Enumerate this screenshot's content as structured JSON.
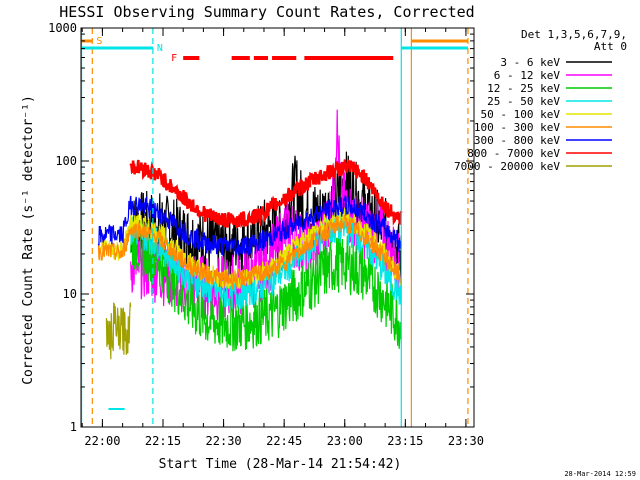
{
  "chart_data": {
    "type": "line",
    "title": "HESSI Observing Summary Count Rates, Corrected",
    "xlabel": "Start Time (28-Mar-14 21:54:42)",
    "ylabel": "Corrected Count Rate (s⁻¹ detector⁻¹)",
    "y_scale": "log",
    "ylim": [
      1,
      1000
    ],
    "xlim": [
      "21:54:42",
      "23:32:00"
    ],
    "x_ticks": [
      "22:00",
      "22:15",
      "22:30",
      "22:45",
      "23:00",
      "23:15",
      "23:30"
    ],
    "y_ticks": [
      "1",
      "10",
      "100",
      "1000"
    ],
    "legend": {
      "position": "top-right",
      "header": [
        "Det 1,3,5,6,7,9,",
        "Att 0"
      ]
    },
    "series": [
      {
        "name": "3 - 6 keV",
        "color": "#000000",
        "x": [
          "22:07",
          "22:10",
          "22:14",
          "22:18",
          "22:22",
          "22:26",
          "22:30",
          "22:34",
          "22:38",
          "22:40",
          "22:42",
          "22:44",
          "22:46",
          "22:48",
          "22:50",
          "22:54",
          "22:58",
          "23:00",
          "23:02",
          "23:05",
          "23:08",
          "23:11",
          "23:13",
          "23:14"
        ],
        "values": [
          32,
          34,
          34,
          30,
          26,
          24,
          23,
          24,
          26,
          30,
          32,
          29,
          48,
          65,
          42,
          40,
          50,
          70,
          60,
          45,
          35,
          28,
          22,
          17
        ]
      },
      {
        "name": "6 - 12 keV",
        "color": "#ff00ff",
        "x": [
          "22:07",
          "22:10",
          "22:14",
          "22:18",
          "22:22",
          "22:26",
          "22:30",
          "22:34",
          "22:38",
          "22:42",
          "22:46",
          "22:50",
          "22:54",
          "22:57",
          "22:58",
          "22:59",
          "23:00",
          "23:03",
          "23:06",
          "23:09",
          "23:12",
          "23:14"
        ],
        "values": [
          17,
          16,
          15,
          13,
          12,
          11,
          11,
          12,
          14,
          19,
          32,
          22,
          26,
          45,
          185,
          60,
          48,
          32,
          30,
          28,
          20,
          15
        ]
      },
      {
        "name": "12 - 25 keV",
        "color": "#00cc00",
        "x": [
          "22:07",
          "22:10",
          "22:14",
          "22:18",
          "22:22",
          "22:26",
          "22:30",
          "22:34",
          "22:38",
          "22:42",
          "22:46",
          "22:50",
          "22:54",
          "22:58",
          "23:00",
          "23:02",
          "23:05",
          "23:08",
          "23:11",
          "23:14"
        ],
        "values": [
          25,
          22,
          18,
          12,
          8,
          6.5,
          6,
          6,
          6.5,
          7,
          9,
          11,
          14,
          17,
          17,
          16,
          14,
          11,
          8,
          6
        ]
      },
      {
        "name": "25 - 50 keV",
        "color": "#00e5e5",
        "x": [
          "22:07",
          "22:10",
          "22:14",
          "22:18",
          "22:22",
          "22:26",
          "22:30",
          "22:34",
          "22:38",
          "22:42",
          "22:46",
          "22:50",
          "22:54",
          "22:58",
          "23:00",
          "23:02",
          "23:05",
          "23:08",
          "23:11",
          "23:14"
        ],
        "values": [
          30,
          28,
          24,
          17,
          13,
          11,
          10,
          10,
          11,
          13,
          16,
          21,
          27,
          31,
          31,
          29,
          24,
          18,
          13,
          10
        ]
      },
      {
        "name": "50 - 100 keV",
        "color": "#e5e500",
        "x": [
          "21:59",
          "22:02",
          "22:05",
          "22:07",
          "22:10",
          "22:14",
          "22:18",
          "22:22",
          "22:26",
          "22:30",
          "22:34",
          "22:38",
          "22:42",
          "22:46",
          "22:50",
          "22:54",
          "22:58",
          "23:00",
          "23:02",
          "23:05",
          "23:08",
          "23:11",
          "23:14"
        ],
        "values": [
          22,
          22,
          21,
          34,
          33,
          29,
          22,
          17,
          14,
          13,
          13,
          14,
          16,
          20,
          26,
          32,
          38,
          38,
          36,
          30,
          24,
          18,
          13
        ]
      },
      {
        "name": "100 - 300 keV",
        "color": "#ff8c00",
        "x": [
          "21:59",
          "22:02",
          "22:05",
          "22:07",
          "22:10",
          "22:14",
          "22:18",
          "22:22",
          "22:26",
          "22:30",
          "22:34",
          "22:38",
          "22:42",
          "22:46",
          "22:50",
          "22:54",
          "22:58",
          "23:00",
          "23:02",
          "23:05",
          "23:08",
          "23:11",
          "23:14"
        ],
        "values": [
          21,
          21,
          20,
          31,
          30,
          26,
          20,
          16,
          14,
          13,
          13,
          14,
          15,
          18,
          23,
          28,
          33,
          34,
          32,
          27,
          22,
          17,
          13
        ]
      },
      {
        "name": "300 - 800 keV",
        "color": "#0000ff",
        "x": [
          "21:59",
          "22:02",
          "22:05",
          "22:07",
          "22:10",
          "22:14",
          "22:18",
          "22:22",
          "22:26",
          "22:30",
          "22:34",
          "22:38",
          "22:42",
          "22:46",
          "22:50",
          "22:54",
          "22:58",
          "23:00",
          "23:02",
          "23:05",
          "23:08",
          "23:11",
          "23:14"
        ],
        "values": [
          27,
          28,
          28,
          47,
          46,
          41,
          33,
          27,
          24,
          23,
          23,
          24,
          27,
          31,
          36,
          41,
          45,
          46,
          45,
          40,
          34,
          29,
          24
        ]
      },
      {
        "name": "800 - 7000 keV",
        "color": "#ff0000",
        "x": [
          "22:07",
          "22:10",
          "22:14",
          "22:18",
          "22:22",
          "22:26",
          "22:30",
          "22:34",
          "22:38",
          "22:42",
          "22:46",
          "22:50",
          "22:54",
          "22:58",
          "23:00",
          "23:02",
          "23:05",
          "23:08",
          "23:11",
          "23:14"
        ],
        "values": [
          92,
          88,
          78,
          60,
          47,
          39,
          36,
          36,
          38,
          45,
          55,
          66,
          77,
          86,
          90,
          88,
          75,
          55,
          42,
          37
        ]
      },
      {
        "name": "7000 - 20000 keV",
        "color": "#a0a000",
        "x": [
          "22:01",
          "22:02",
          "22:03",
          "22:04",
          "22:05",
          "22:06",
          "22:07"
        ],
        "values": [
          5.5,
          4.5,
          6,
          5,
          5.5,
          4.8,
          6.5
        ]
      }
    ],
    "flags": [
      {
        "label": "S",
        "color": "#ff8c00"
      },
      {
        "label": "N",
        "color": "#00e5e5"
      },
      {
        "label": "F",
        "color": "#ff0000"
      }
    ]
  },
  "footer": {
    "datestamp": "28-Mar-2014 12:59"
  }
}
